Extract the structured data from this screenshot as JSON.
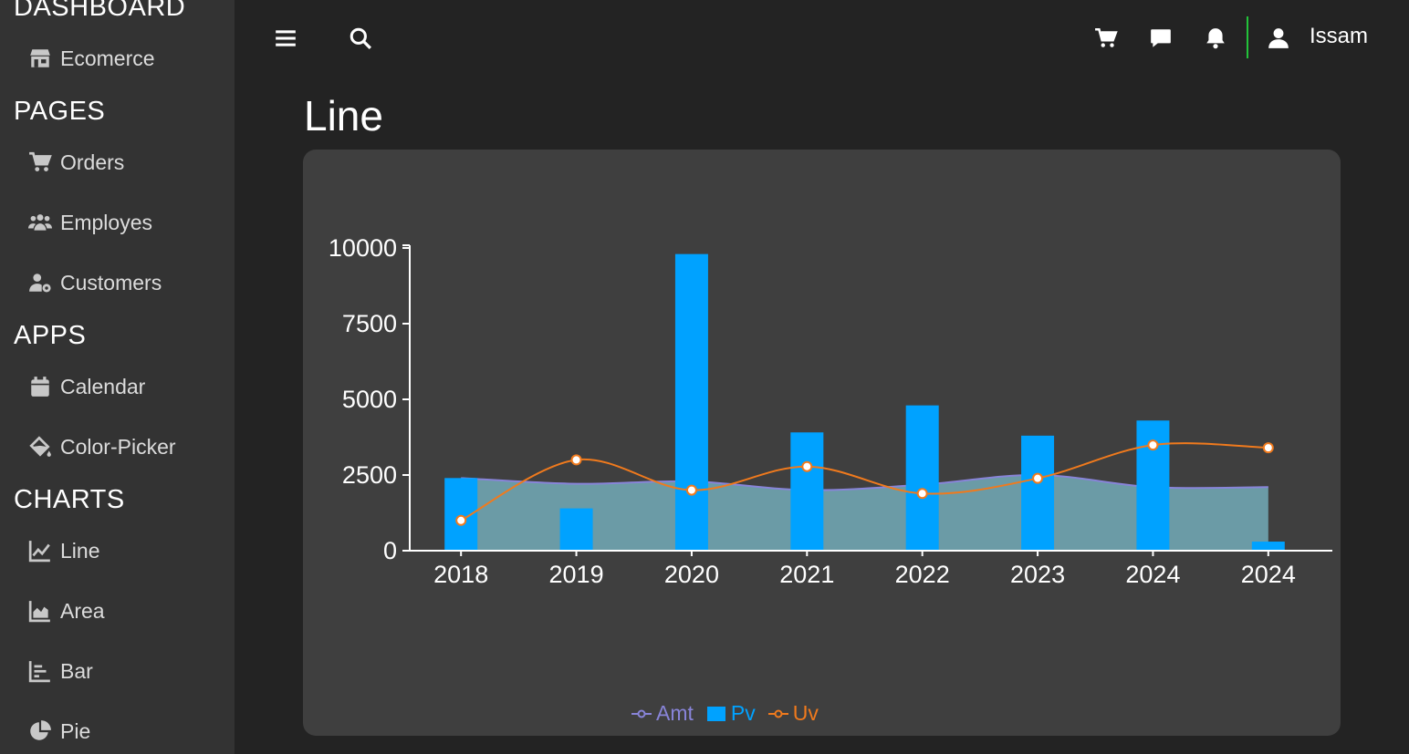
{
  "sidebar": {
    "sections": [
      {
        "title": "DASHBOARD",
        "items": [
          {
            "label": "Ecomerce",
            "icon": "store-icon"
          }
        ]
      },
      {
        "title": "PAGES",
        "items": [
          {
            "label": "Orders",
            "icon": "cart-icon"
          },
          {
            "label": "Employes",
            "icon": "users-icon"
          },
          {
            "label": "Customers",
            "icon": "user-gear-icon"
          }
        ]
      },
      {
        "title": "APPS",
        "items": [
          {
            "label": "Calendar",
            "icon": "calendar-icon"
          },
          {
            "label": "Color-Picker",
            "icon": "paint-bucket-icon"
          }
        ]
      },
      {
        "title": "CHARTS",
        "items": [
          {
            "label": "Line",
            "icon": "line-chart-icon"
          },
          {
            "label": "Area",
            "icon": "area-chart-icon"
          },
          {
            "label": "Bar",
            "icon": "bar-chart-icon"
          },
          {
            "label": "Pie",
            "icon": "pie-chart-icon"
          }
        ]
      }
    ]
  },
  "header": {
    "user_name": "Issam",
    "divider_color": "#22c33a"
  },
  "page": {
    "title": "Line"
  },
  "colors": {
    "amt": "#8884d8",
    "pv": "#00a2ff",
    "uv": "#f07a1d",
    "area_fill": "#6b9ba6"
  },
  "chart_data": {
    "type": "bar",
    "categories": [
      "2018",
      "2019",
      "2020",
      "2021",
      "2022",
      "2023",
      "2024",
      "2024"
    ],
    "series": [
      {
        "name": "Amt",
        "kind": "area",
        "values": [
          2400,
          2210,
          2290,
          2000,
          2181,
          2500,
          2100,
          2100
        ]
      },
      {
        "name": "Pv",
        "kind": "bar",
        "values": [
          2400,
          1398,
          9800,
          3908,
          4800,
          3800,
          4300,
          300
        ]
      },
      {
        "name": "Uv",
        "kind": "line",
        "values": [
          1000,
          3000,
          2000,
          2780,
          1890,
          2390,
          3490,
          3400
        ]
      }
    ],
    "yticks": [
      0,
      2500,
      5000,
      7500,
      10000
    ],
    "ylim": [
      0,
      10000
    ],
    "legend": "bottom-center",
    "grid": false
  }
}
